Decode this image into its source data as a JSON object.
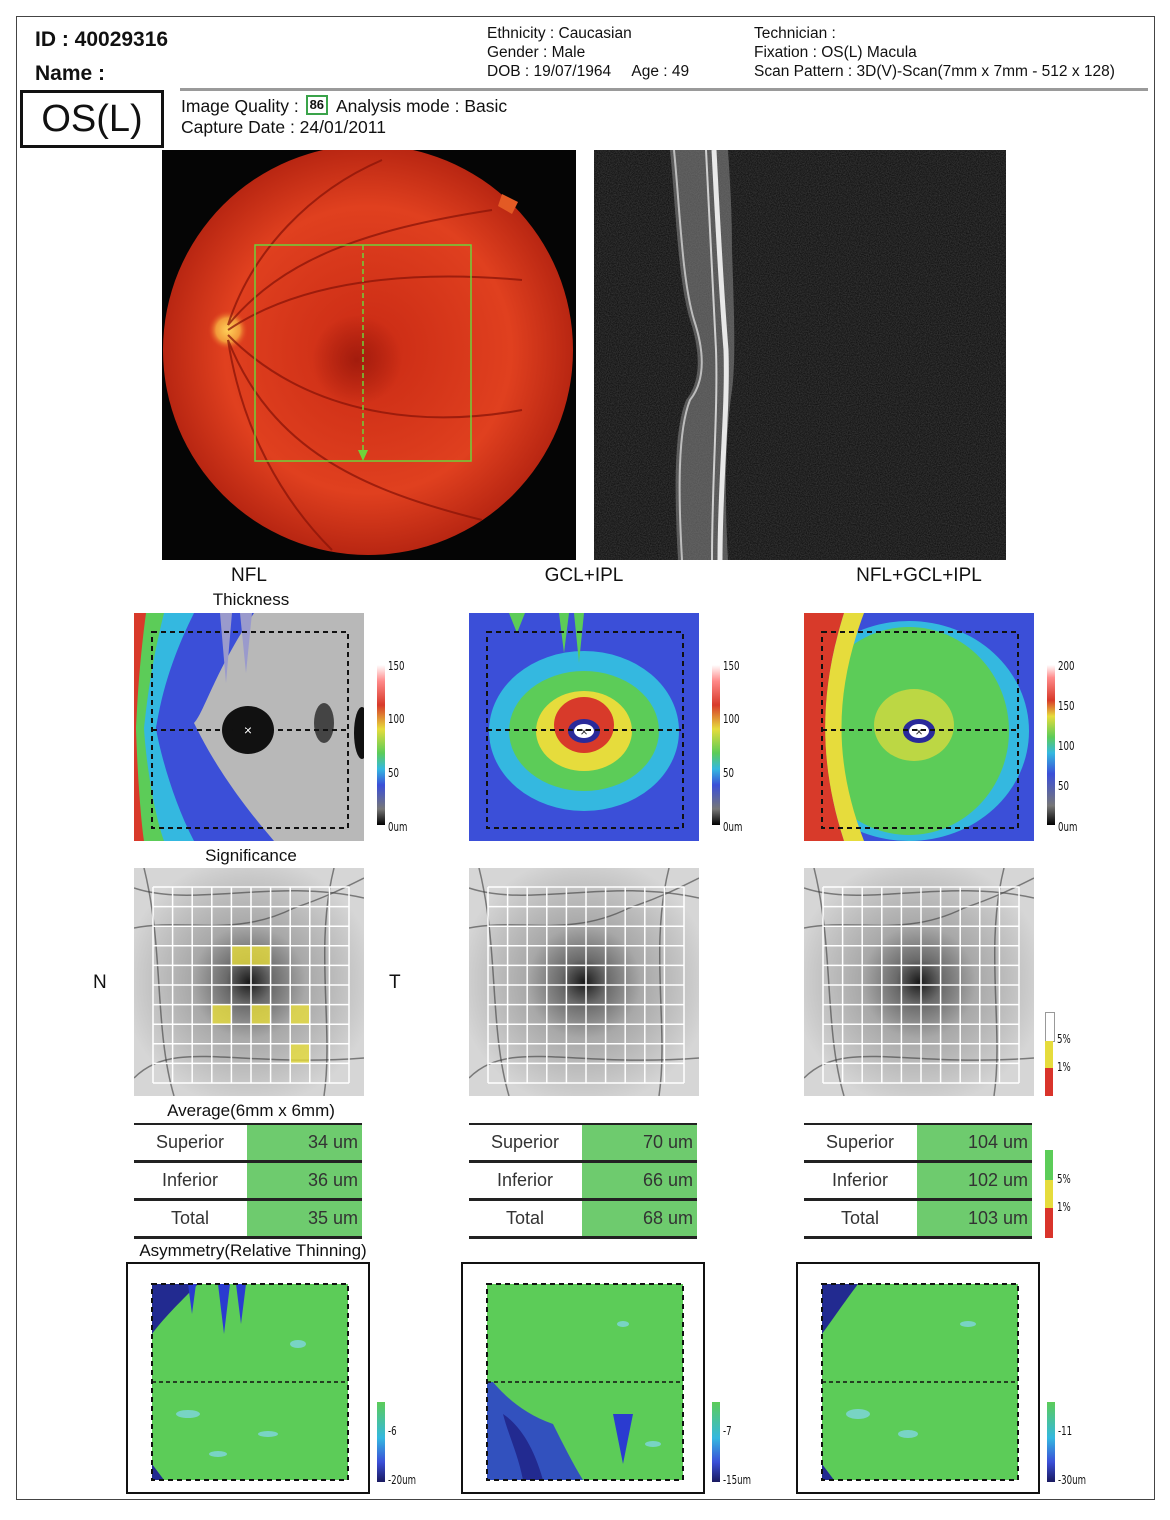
{
  "patient": {
    "id_line": "ID : 40029316",
    "name_label": "Name :",
    "ethnicity": "Ethnicity : Caucasian",
    "gender": "Gender : Male",
    "dob": "DOB : 19/07/1964",
    "age": "Age : 49",
    "technician": "Technician :",
    "fixation": "Fixation : OS(L) Macula",
    "scan_pattern": "Scan Pattern : 3D(V)-Scan(7mm x 7mm - 512 x 128)"
  },
  "eye": "OS(L)",
  "image_quality_label": "Image Quality :",
  "image_quality_value": "86",
  "analysis_mode": "Analysis mode : Basic",
  "capture_date": "Capture Date : 24/01/2011",
  "columns": [
    {
      "title": "NFL",
      "scale": [
        "150",
        "100",
        "50",
        "0um"
      ],
      "asym_scale": [
        "-6",
        "-20um"
      ],
      "avg": [
        {
          "label": "Superior",
          "value": "34 um"
        },
        {
          "label": "Inferior",
          "value": "36 um"
        },
        {
          "label": "Total",
          "value": "35 um"
        }
      ]
    },
    {
      "title": "GCL+IPL",
      "scale": [
        "150",
        "100",
        "50",
        "0um"
      ],
      "asym_scale": [
        "-7",
        "-15um"
      ],
      "avg": [
        {
          "label": "Superior",
          "value": "70 um"
        },
        {
          "label": "Inferior",
          "value": "66 um"
        },
        {
          "label": "Total",
          "value": "68 um"
        }
      ]
    },
    {
      "title": "NFL+GCL+IPL",
      "scale": [
        "200",
        "150",
        "100",
        "50",
        "0um"
      ],
      "asym_scale": [
        "-11",
        "-30um"
      ],
      "avg": [
        {
          "label": "Superior",
          "value": "104 um"
        },
        {
          "label": "Inferior",
          "value": "102 um"
        },
        {
          "label": "Total",
          "value": "103 um"
        }
      ]
    }
  ],
  "section_labels": {
    "thickness": "Thickness",
    "significance": "Significance",
    "average": "Average(6mm x 6mm)",
    "asymmetry": "Asymmetry(Relative Thinning)"
  },
  "side_labels": {
    "nasal": "N",
    "temporal": "T"
  },
  "significance_legend": [
    "5%",
    "1%"
  ],
  "average_legend": [
    "5%",
    "1%"
  ],
  "colors": {
    "normal_green": "#6ecb6e",
    "borderline_yellow": "#e6dc3c",
    "abnormal_red": "#d9342b",
    "fundus_red": "#d8321c"
  }
}
